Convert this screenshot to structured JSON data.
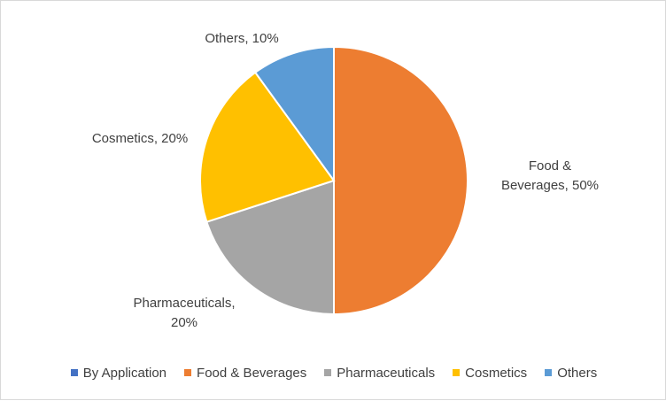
{
  "chart_data": {
    "type": "pie",
    "title": "",
    "legend_position": "bottom",
    "legend": [
      {
        "label": "By Application",
        "color": "#4472c4"
      },
      {
        "label": "Food & Beverages",
        "color": "#ed7d31"
      },
      {
        "label": "Pharmaceuticals",
        "color": "#a5a5a5"
      },
      {
        "label": "Cosmetics",
        "color": "#ffc000"
      },
      {
        "label": "Others",
        "color": "#5b9bd5"
      }
    ],
    "slices": [
      {
        "name": "Food & Beverages",
        "value": 50,
        "color": "#ed7d31",
        "label_lines": [
          "Food &",
          "Beverages, 50%"
        ]
      },
      {
        "name": "Pharmaceuticals",
        "value": 20,
        "color": "#a5a5a5",
        "label_lines": [
          "Pharmaceuticals,",
          "20%"
        ]
      },
      {
        "name": "Cosmetics",
        "value": 20,
        "color": "#ffc000",
        "label_lines": [
          "Cosmetics, 20%"
        ]
      },
      {
        "name": "Others",
        "value": 10,
        "color": "#5b9bd5",
        "label_lines": [
          "Others, 10%"
        ]
      }
    ]
  }
}
